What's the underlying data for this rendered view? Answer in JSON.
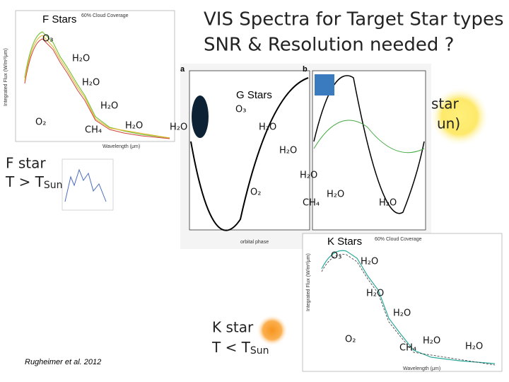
{
  "title": [
    "VIS Spectra for Target Star types",
    "SNR & Resolution needed ?"
  ],
  "f_panel": {
    "heading": "F Stars",
    "labels": [
      "O₃",
      "H₂O",
      "H₂O",
      "H₂O",
      "O₂",
      "CH₄",
      "H₂O",
      "H₂O"
    ],
    "x_label": "Wavelength (μm)",
    "y_label": "Integrated Flux (W/m²/μm)",
    "caption": "60% Cloud Coverage"
  },
  "g_panel": {
    "heading": "G Stars",
    "labels": [
      "O₃",
      "H₂O",
      "H₂O",
      "H₂O",
      "O₂",
      "CH₄",
      "H₂O",
      "H₂O"
    ],
    "panel_a": "a",
    "panel_b": "b",
    "x_label": "orbital phase"
  },
  "k_panel": {
    "heading": "K Stars",
    "labels": [
      "O₃",
      "H₂O",
      "H₂O",
      "H₂O",
      "O₂",
      "CH₄",
      "H₂O",
      "H₂O"
    ],
    "x_label": "Wavelength (μm)",
    "y_label": "Integrated Flux (W/m²/μm)",
    "caption": "60% Cloud Coverage"
  },
  "f_star": {
    "name": "F star",
    "relation": "T > T",
    "subscript": "Sun"
  },
  "g_star": {
    "name": "star",
    "fragment": "un)"
  },
  "k_star": {
    "name": "K star",
    "relation": "T < T",
    "subscript": "Sun"
  },
  "citation": "Rugheimer et al. 2012"
}
